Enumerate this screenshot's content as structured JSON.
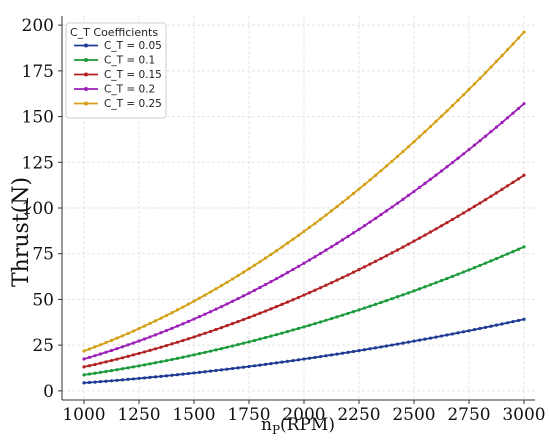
{
  "chart_data": {
    "type": "line",
    "xlabel_main": "n",
    "xlabel_sub": "P",
    "xlabel_unit": "(RPM)",
    "ylabel": "Thrust(N)",
    "xlim": [
      900,
      3050
    ],
    "ylim": [
      -5,
      205
    ],
    "xticks": [
      1000,
      1250,
      1500,
      1750,
      2000,
      2250,
      2500,
      2750,
      3000
    ],
    "yticks": [
      0,
      25,
      50,
      75,
      100,
      125,
      150,
      175,
      200
    ],
    "grid": true,
    "legend_title": "C_T Coefficients",
    "legend_position": "top-left",
    "x_range": [
      1000,
      3000
    ],
    "model": "y = k * (x / 1000)^2",
    "series": [
      {
        "name": "C_T = 0.05",
        "color": "#1f3a93",
        "k": 4.35
      },
      {
        "name": "C_T = 0.1",
        "color": "#1a9a3a",
        "k": 8.75
      },
      {
        "name": "C_T = 0.15",
        "color": "#b22222",
        "k": 13.1
      },
      {
        "name": "C_T = 0.2",
        "color": "#9b1fb8",
        "k": 17.45
      },
      {
        "name": "C_T = 0.25",
        "color": "#d4a017",
        "k": 21.8
      }
    ],
    "points_per_series": 81
  }
}
